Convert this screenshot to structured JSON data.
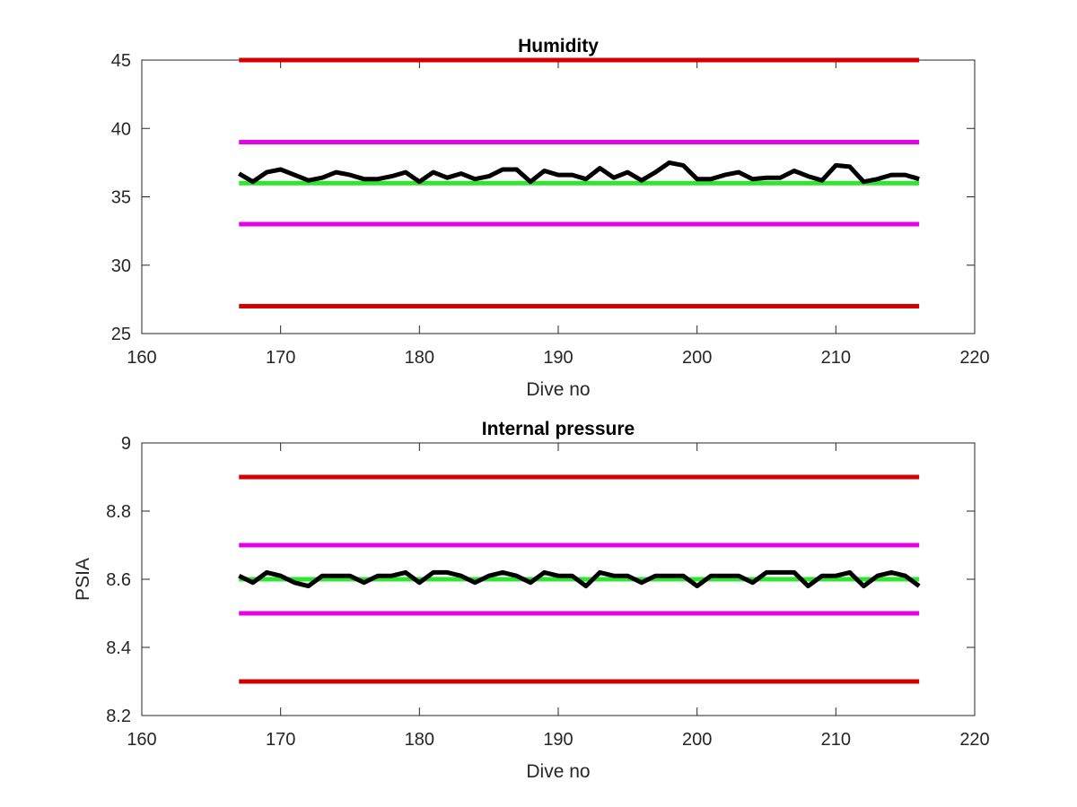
{
  "chart_data": [
    {
      "type": "line",
      "title": "Humidity",
      "xlabel": "Dive no",
      "ylabel": "",
      "xlim": [
        160,
        220
      ],
      "ylim": [
        25,
        45
      ],
      "xticks": [
        "160",
        "170",
        "180",
        "190",
        "200",
        "210",
        "220"
      ],
      "yticks": [
        "25",
        "30",
        "35",
        "40",
        "45"
      ],
      "grid": false,
      "reference_lines": [
        {
          "y": 45,
          "x_range": [
            167,
            216
          ],
          "color": "#d40000"
        },
        {
          "y": 39,
          "x_range": [
            167,
            216
          ],
          "color": "#e600e6"
        },
        {
          "y": 36,
          "x_range": [
            167,
            216
          ],
          "color": "#2ee62e"
        },
        {
          "y": 33,
          "x_range": [
            167,
            216
          ],
          "color": "#e600e6"
        },
        {
          "y": 27,
          "x_range": [
            167,
            216
          ],
          "color": "#d40000"
        }
      ],
      "series": [
        {
          "color": "#000000",
          "x": [
            167,
            168,
            169,
            170,
            171,
            172,
            173,
            174,
            175,
            176,
            177,
            178,
            179,
            180,
            181,
            182,
            183,
            184,
            185,
            186,
            187,
            188,
            189,
            190,
            191,
            192,
            193,
            194,
            195,
            196,
            197,
            198,
            199,
            200,
            201,
            202,
            203,
            204,
            205,
            206,
            207,
            208,
            209,
            210,
            211,
            212,
            213,
            214,
            215,
            216
          ],
          "values": [
            36.7,
            36.1,
            36.8,
            37.0,
            36.6,
            36.2,
            36.4,
            36.8,
            36.6,
            36.3,
            36.3,
            36.5,
            36.8,
            36.1,
            36.8,
            36.4,
            36.7,
            36.3,
            36.5,
            37.0,
            37.0,
            36.1,
            36.9,
            36.6,
            36.6,
            36.3,
            37.1,
            36.4,
            36.8,
            36.2,
            36.8,
            37.5,
            37.3,
            36.3,
            36.3,
            36.6,
            36.8,
            36.3,
            36.4,
            36.4,
            36.9,
            36.5,
            36.2,
            37.3,
            37.2,
            36.1,
            36.3,
            36.6,
            36.6,
            36.3
          ]
        }
      ]
    },
    {
      "type": "line",
      "title": "Internal pressure",
      "xlabel": "Dive no",
      "ylabel": "PSIA",
      "xlim": [
        160,
        220
      ],
      "ylim": [
        8.2,
        9
      ],
      "xticks": [
        "160",
        "170",
        "180",
        "190",
        "200",
        "210",
        "220"
      ],
      "yticks": [
        "8.2",
        "8.4",
        "8.6",
        "8.8",
        "9"
      ],
      "grid": false,
      "reference_lines": [
        {
          "y": 8.9,
          "x_range": [
            167,
            216
          ],
          "color": "#d40000"
        },
        {
          "y": 8.7,
          "x_range": [
            167,
            216
          ],
          "color": "#e600e6"
        },
        {
          "y": 8.6,
          "x_range": [
            167,
            216
          ],
          "color": "#2ee62e"
        },
        {
          "y": 8.5,
          "x_range": [
            167,
            216
          ],
          "color": "#e600e6"
        },
        {
          "y": 8.3,
          "x_range": [
            167,
            216
          ],
          "color": "#d40000"
        }
      ],
      "series": [
        {
          "color": "#000000",
          "x": [
            167,
            168,
            169,
            170,
            171,
            172,
            173,
            174,
            175,
            176,
            177,
            178,
            179,
            180,
            181,
            182,
            183,
            184,
            185,
            186,
            187,
            188,
            189,
            190,
            191,
            192,
            193,
            194,
            195,
            196,
            197,
            198,
            199,
            200,
            201,
            202,
            203,
            204,
            205,
            206,
            207,
            208,
            209,
            210,
            211,
            212,
            213,
            214,
            215,
            216
          ],
          "values": [
            8.61,
            8.59,
            8.62,
            8.61,
            8.59,
            8.58,
            8.61,
            8.61,
            8.61,
            8.59,
            8.61,
            8.61,
            8.62,
            8.59,
            8.62,
            8.62,
            8.61,
            8.59,
            8.61,
            8.62,
            8.61,
            8.59,
            8.62,
            8.61,
            8.61,
            8.58,
            8.62,
            8.61,
            8.61,
            8.59,
            8.61,
            8.61,
            8.61,
            8.58,
            8.61,
            8.61,
            8.61,
            8.59,
            8.62,
            8.62,
            8.62,
            8.58,
            8.61,
            8.61,
            8.62,
            8.58,
            8.61,
            8.62,
            8.61,
            8.58
          ]
        }
      ]
    }
  ]
}
